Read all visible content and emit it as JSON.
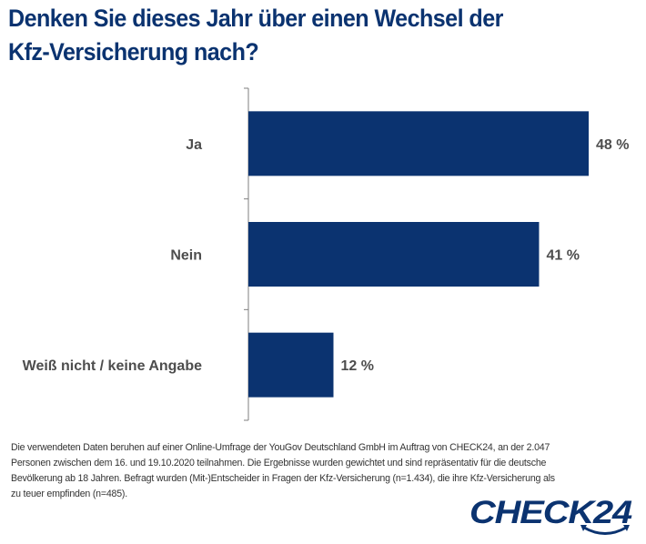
{
  "title": {
    "line1": "Denken Sie dieses Jahr über einen Wechsel der",
    "line2": "Kfz-Versicherung nach?"
  },
  "colors": {
    "bar": "#0b3370",
    "title": "#0b3370",
    "label": "#4d4d4d",
    "axis": "#7f7f7f",
    "footnote": "#333333"
  },
  "chart_data": {
    "type": "bar",
    "orientation": "horizontal",
    "title": "Denken Sie dieses Jahr über einen Wechsel der Kfz-Versicherung nach?",
    "categories": [
      "Ja",
      "Nein",
      "Weiß nicht / keine Angabe"
    ],
    "values": [
      48,
      41,
      12
    ],
    "value_labels": [
      "48 %",
      "41 %",
      "12 %"
    ],
    "unit": "%",
    "xlabel": "",
    "ylabel": "",
    "xlim": [
      0,
      48
    ],
    "grid": false,
    "legend": "none"
  },
  "footnote": {
    "lines": [
      "Die verwendeten Daten beruhen auf einer Online-Umfrage der YouGov Deutschland GmbH im Auftrag von CHECK24, an der 2.047",
      "Personen zwischen dem 16. und 19.10.2020 teilnahmen. Die Ergebnisse wurden gewichtet und sind repräsentativ für die deutsche",
      "Bevölkerung ab 18 Jahren. Befragt wurden (Mit-)Entscheider in Fragen der Kfz-Versicherung (n=1.434), die ihre Kfz-Versicherung als",
      "zu teuer empfinden (n=485)."
    ]
  },
  "logo": {
    "text": "CHECK24",
    "icon": "check24-smile-arrow-icon"
  }
}
